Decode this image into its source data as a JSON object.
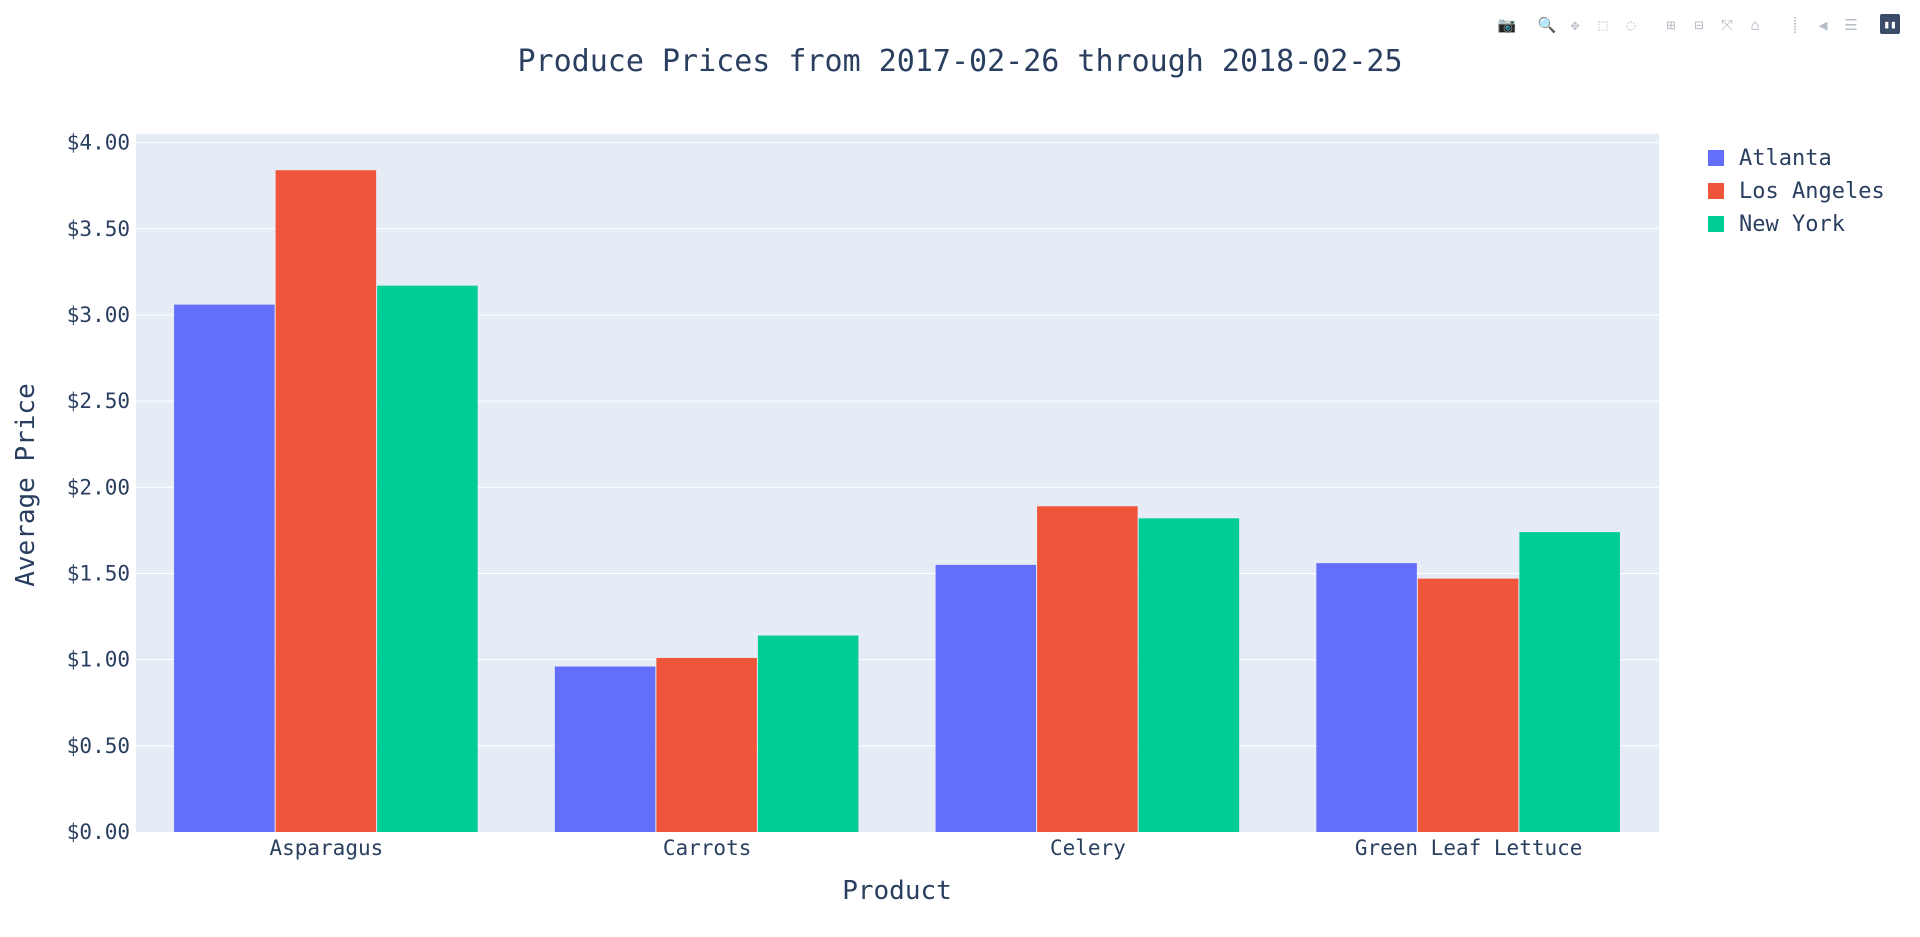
{
  "modebar": {
    "groups": [
      [
        {
          "name": "camera-icon",
          "glyph": "📷"
        }
      ],
      [
        {
          "name": "zoom-icon",
          "glyph": "🔍",
          "active": true
        },
        {
          "name": "pan-icon",
          "glyph": "✥"
        },
        {
          "name": "box-select-icon",
          "glyph": "⬚"
        },
        {
          "name": "lasso-select-icon",
          "glyph": "◌"
        }
      ],
      [
        {
          "name": "zoom-in-icon",
          "glyph": "⊞"
        },
        {
          "name": "zoom-out-icon",
          "glyph": "⊟"
        },
        {
          "name": "autoscale-icon",
          "glyph": "⤧"
        },
        {
          "name": "reset-axes-icon",
          "glyph": "⌂"
        }
      ],
      [
        {
          "name": "toggle-spike-lines-icon",
          "glyph": "⸽"
        },
        {
          "name": "hover-closest-icon",
          "glyph": "◀"
        },
        {
          "name": "hover-compare-icon",
          "glyph": "☰"
        }
      ],
      [
        {
          "name": "plotly-logo-icon",
          "glyph": "▮▮",
          "logo": true
        }
      ]
    ]
  },
  "colors": {
    "plot_bg": "#e5ecf6",
    "grid": "#ffffff",
    "text": "#2a3f5f",
    "series": [
      "#636efa",
      "#ef553b",
      "#00cc96"
    ]
  },
  "chart_data": {
    "type": "bar",
    "title": "Produce Prices from 2017-02-26 through 2018-02-25",
    "xlabel": "Product",
    "ylabel": "Average Price",
    "categories": [
      "Asparagus",
      "Carrots",
      "Celery",
      "Green Leaf Lettuce"
    ],
    "series": [
      {
        "name": "Atlanta",
        "values": [
          3.06,
          0.96,
          1.55,
          1.56
        ]
      },
      {
        "name": "Los Angeles",
        "values": [
          3.84,
          1.01,
          1.89,
          1.47
        ]
      },
      {
        "name": "New York",
        "values": [
          3.17,
          1.14,
          1.82,
          1.74
        ]
      }
    ],
    "ylim": [
      0,
      4.05
    ],
    "yticks": [
      0,
      0.5,
      1,
      1.5,
      2,
      2.5,
      3,
      3.5,
      4
    ],
    "ytick_labels": [
      "$0.00",
      "$0.50",
      "$1.00",
      "$1.50",
      "$2.00",
      "$2.50",
      "$3.00",
      "$3.50",
      "$4.00"
    ],
    "grid": true,
    "legend": "top-right"
  }
}
